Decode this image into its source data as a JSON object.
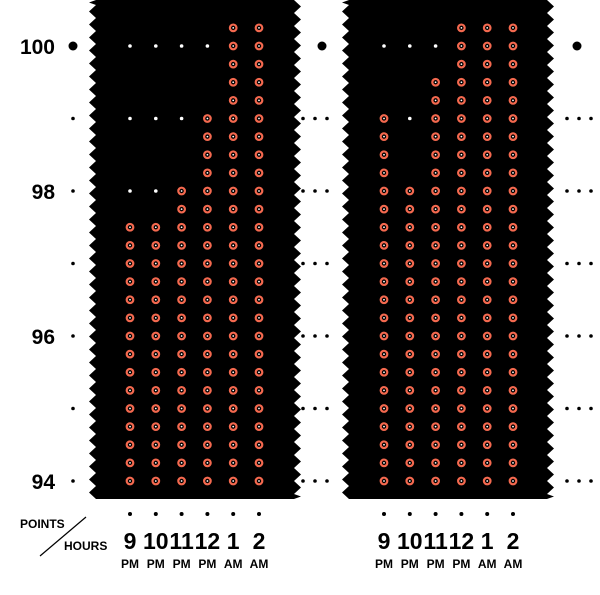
{
  "chart_data": {
    "type": "dot-column",
    "title": "",
    "xlabel": "HOURS",
    "ylabel": "POINTS",
    "corner_label": {
      "top": "POINTS",
      "bottom": "HOURS"
    },
    "ylim": [
      94,
      100.4
    ],
    "y_ticks": [
      {
        "value": 94,
        "label": "94"
      },
      {
        "value": 95,
        "label": ""
      },
      {
        "value": 96,
        "label": "96"
      },
      {
        "value": 97,
        "label": ""
      },
      {
        "value": 98,
        "label": "98"
      },
      {
        "value": 99,
        "label": ""
      },
      {
        "value": 100,
        "label": "100"
      }
    ],
    "colors": {
      "background": "#000000",
      "dot": "#f4694f",
      "dot_center": "#ffffff",
      "text": "#000000"
    },
    "panels": [
      {
        "categories": [
          {
            "hour": "9",
            "ampm": "PM"
          },
          {
            "hour": "10",
            "ampm": "PM"
          },
          {
            "hour": "11",
            "ampm": "PM"
          },
          {
            "hour": "12",
            "ampm": "PM"
          },
          {
            "hour": "1",
            "ampm": "AM"
          },
          {
            "hour": "2",
            "ampm": "AM"
          }
        ],
        "values": [
          97.5,
          97.5,
          98.0,
          99.0,
          100.25,
          100.25
        ]
      },
      {
        "categories": [
          {
            "hour": "9",
            "ampm": "PM"
          },
          {
            "hour": "10",
            "ampm": "PM"
          },
          {
            "hour": "11",
            "ampm": "PM"
          },
          {
            "hour": "12",
            "ampm": "PM"
          },
          {
            "hour": "1",
            "ampm": "AM"
          },
          {
            "hour": "2",
            "ampm": "AM"
          }
        ],
        "values": [
          99.0,
          98.0,
          99.5,
          100.25,
          100.25,
          100.25
        ]
      }
    ]
  }
}
